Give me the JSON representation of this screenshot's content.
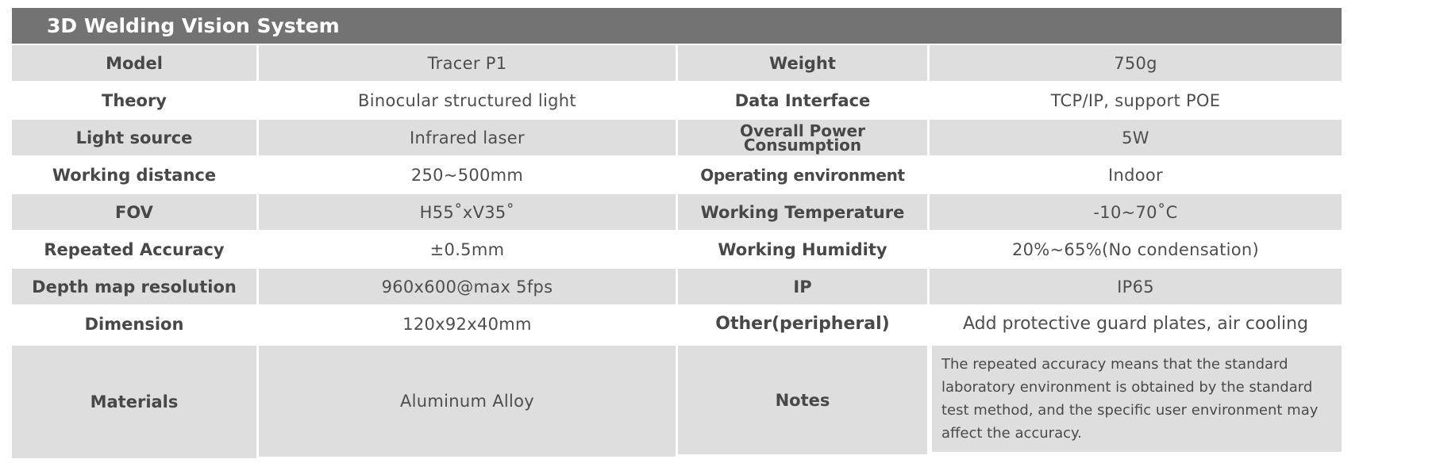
{
  "title": "3D Welding Vision System",
  "rows": [
    {
      "label1": "Model",
      "value1": "Tracer P1",
      "label2": "Weight",
      "value2": "750g"
    },
    {
      "label1": "Theory",
      "value1": "Binocular structured light",
      "label2": "Data Interface",
      "value2": "TCP/IP, support POE"
    },
    {
      "label1": "Light source",
      "value1": "Infrared laser",
      "label2": "Overall Power Consumption",
      "value2": "5W"
    },
    {
      "label1": "Working distance",
      "value1": "250~500mm",
      "label2": "Operating environment",
      "value2": "Indoor"
    },
    {
      "label1": "FOV",
      "value1": "H55˚xV35˚",
      "label2": "Working Temperature",
      "value2": "-10~70˚C"
    },
    {
      "label1": "Repeated Accuracy",
      "value1": "±0.5mm",
      "label2": "Working Humidity",
      "value2": "20%~65%(No condensation)"
    },
    {
      "label1": "Depth map resolution",
      "value1": "960x600@max 5fps",
      "label2": "IP",
      "value2": "IP65"
    },
    {
      "label1": "Dimension",
      "value1": "120x92x40mm",
      "label2": "Other(peripheral)",
      "value2": "Add protective guard plates, air cooling"
    },
    {
      "label1": "Materials",
      "value1": "Aluminum Alloy",
      "label2": "Notes",
      "value2": "The repeated accuracy means that the standard laboratory environment is obtained by the standard test method, and the specific user environment may affect the accuracy."
    }
  ]
}
